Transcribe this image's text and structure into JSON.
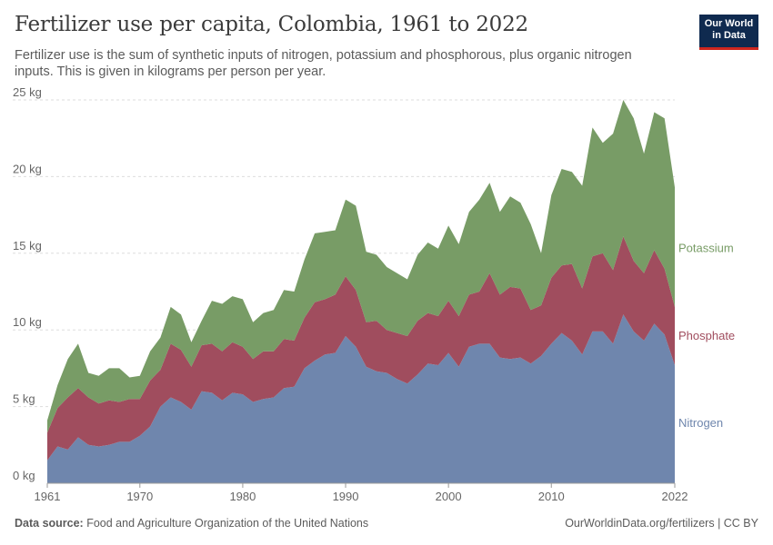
{
  "header": {
    "title": "Fertilizer use per capita, Colombia, 1961 to 2022",
    "subtitle": "Fertilizer use is the sum of synthetic inputs of nitrogen, potassium and phosphorous, plus organic nitrogen inputs. This is given in kilograms per person per year.",
    "logo_text": "Our World in Data"
  },
  "footer": {
    "source_label": "Data source:",
    "source_text": "Food and Agriculture Organization of the United Nations",
    "right_text": "OurWorldinData.org/fertilizers | CC BY"
  },
  "colors": {
    "Nitrogen": "#6f86ad",
    "Phosphate": "#a04d5e",
    "Potassium": "#789c66",
    "grid": "#dddddd"
  },
  "chart_data": {
    "type": "area",
    "stacked": true,
    "title": "Fertilizer use per capita, Colombia, 1961 to 2022",
    "ylim": [
      0,
      25
    ],
    "y_ticks": [
      0,
      5,
      10,
      15,
      20,
      25
    ],
    "y_tick_labels": [
      "0 kg",
      "5 kg",
      "10 kg",
      "15 kg",
      "20 kg",
      "25 kg"
    ],
    "x_ticks": [
      1961,
      1970,
      1980,
      1990,
      2000,
      2010,
      2022
    ],
    "x_tick_labels": [
      "1961",
      "1970",
      "1980",
      "1990",
      "2000",
      "2010",
      "2022"
    ],
    "grid": "horizontal dashed",
    "legend": "right-inline",
    "x": [
      1961,
      1962,
      1963,
      1964,
      1965,
      1966,
      1967,
      1968,
      1969,
      1970,
      1971,
      1972,
      1973,
      1974,
      1975,
      1976,
      1977,
      1978,
      1979,
      1980,
      1981,
      1982,
      1983,
      1984,
      1985,
      1986,
      1987,
      1988,
      1989,
      1990,
      1991,
      1992,
      1993,
      1994,
      1995,
      1996,
      1997,
      1998,
      1999,
      2000,
      2001,
      2002,
      2003,
      2004,
      2005,
      2006,
      2007,
      2008,
      2009,
      2010,
      2011,
      2012,
      2013,
      2014,
      2015,
      2016,
      2017,
      2018,
      2019,
      2020,
      2021,
      2022
    ],
    "series": [
      {
        "name": "Nitrogen",
        "values": [
          1.5,
          2.4,
          2.2,
          3.0,
          2.5,
          2.4,
          2.5,
          2.7,
          2.7,
          3.1,
          3.7,
          5.0,
          5.6,
          5.3,
          4.8,
          6.0,
          5.9,
          5.4,
          5.9,
          5.8,
          5.3,
          5.5,
          5.6,
          6.2,
          6.3,
          7.5,
          8.0,
          8.4,
          8.5,
          9.6,
          8.9,
          7.6,
          7.3,
          7.2,
          6.8,
          6.5,
          7.1,
          7.8,
          7.7,
          8.5,
          7.6,
          8.9,
          9.1,
          9.1,
          8.2,
          8.1,
          8.2,
          7.8,
          8.3,
          9.1,
          9.8,
          9.3,
          8.4,
          9.9,
          9.9,
          9.1,
          11.0,
          9.9,
          9.3,
          10.4,
          9.7,
          7.7
        ]
      },
      {
        "name": "Phosphate",
        "values": [
          1.8,
          2.5,
          3.4,
          3.2,
          3.1,
          2.8,
          2.9,
          2.6,
          2.8,
          2.4,
          3.0,
          2.4,
          3.5,
          3.4,
          2.8,
          3.0,
          3.2,
          3.2,
          3.3,
          3.1,
          2.8,
          3.1,
          3.0,
          3.2,
          3.0,
          3.3,
          3.8,
          3.6,
          3.8,
          3.9,
          3.7,
          2.9,
          3.3,
          2.8,
          3.0,
          3.1,
          3.5,
          3.3,
          3.2,
          3.4,
          3.3,
          3.4,
          3.4,
          4.6,
          4.1,
          4.7,
          4.5,
          3.5,
          3.3,
          4.3,
          4.4,
          5.0,
          4.3,
          4.9,
          5.1,
          4.8,
          5.1,
          4.6,
          4.4,
          4.8,
          4.3,
          3.8
        ]
      },
      {
        "name": "Potassium",
        "values": [
          0.8,
          1.5,
          2.5,
          2.9,
          1.6,
          1.8,
          2.1,
          2.2,
          1.4,
          1.5,
          1.9,
          2.1,
          2.4,
          2.3,
          1.6,
          1.6,
          2.8,
          3.1,
          3.0,
          3.1,
          2.4,
          2.5,
          2.7,
          3.2,
          3.2,
          3.8,
          4.5,
          4.4,
          4.2,
          5.0,
          5.5,
          4.6,
          4.3,
          4.1,
          3.9,
          3.7,
          4.3,
          4.6,
          4.4,
          4.9,
          4.7,
          5.4,
          6.0,
          5.9,
          5.4,
          5.9,
          5.6,
          5.6,
          3.4,
          5.4,
          6.3,
          6.0,
          6.7,
          8.4,
          7.2,
          8.9,
          8.9,
          9.3,
          7.8,
          9.0,
          9.8,
          7.8
        ]
      }
    ]
  }
}
